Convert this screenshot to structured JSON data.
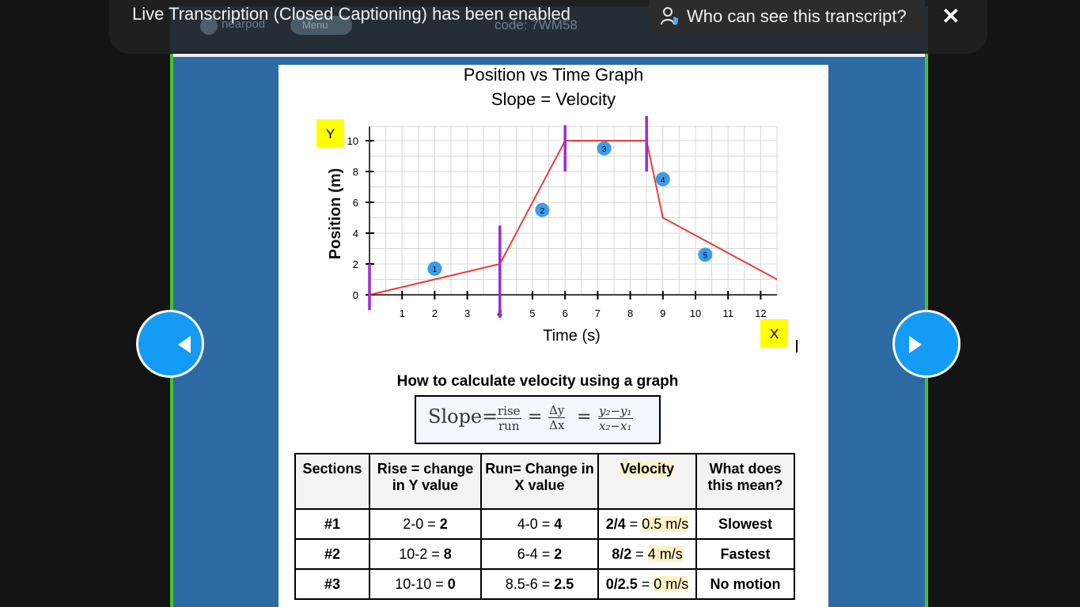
{
  "caption_bar": {
    "status_text": "Live Transcription (Closed Captioning) has been enabled",
    "who_button_label": "Who can see this transcript?",
    "close_label": "✕"
  },
  "background_app": {
    "logo_text": "nearpod",
    "menu_label": "Menu",
    "code_text": "code: 7WM58"
  },
  "slide": {
    "title_line1": "Position vs Time Graph",
    "title_line2": "Slope = Velocity",
    "formula_heading": "How to calculate velocity using a graph",
    "formula": {
      "slope": "Slope=",
      "rise": "rise",
      "run": "run",
      "dy": "Δy",
      "dx": "Δx",
      "y_diff": "y₂−y₁",
      "x_diff": "x₂−x₁",
      "equals": "="
    },
    "table": {
      "headers": [
        "Sections",
        "Rise = change in Y value",
        "Run= Change in X value",
        "Velocity",
        "What does this mean?"
      ],
      "rows": [
        {
          "section": "#1",
          "rise": "2-0 = ",
          "rise_val": "2",
          "run": "4-0 = ",
          "run_val": "4",
          "vel_frac": "2/4",
          "vel_eq": " = ",
          "vel": "0.5 m/s",
          "meaning": "Slowest"
        },
        {
          "section": "#2",
          "rise": "10-2 = ",
          "rise_val": "8",
          "run": "6-4 = ",
          "run_val": "2",
          "vel_frac": "8/2",
          "vel_eq": " = ",
          "vel": "4 m/s",
          "meaning": "Fastest"
        },
        {
          "section": "#3",
          "rise": "10-10 = ",
          "rise_val": "0",
          "run": "8.5-6 = ",
          "run_val": "2.5",
          "vel_frac": "0/2.5",
          "vel_eq": " = ",
          "vel": "0 m/s",
          "meaning": "No motion"
        }
      ]
    }
  },
  "chart_data": {
    "type": "line",
    "xlabel": "Time (s)",
    "ylabel": "Position (m)",
    "x_tag": "X",
    "y_tag": "Y",
    "xlim": [
      0,
      12.5
    ],
    "ylim": [
      0,
      10
    ],
    "x_ticks": [
      1,
      2,
      3,
      4,
      5,
      6,
      7,
      8,
      9,
      10,
      11,
      12
    ],
    "y_ticks": [
      0,
      2,
      4,
      6,
      8,
      10
    ],
    "grid": true,
    "series": [
      {
        "x": [
          0,
          4,
          6,
          8.5,
          9,
          12.5
        ],
        "y": [
          0,
          2,
          10,
          10,
          5,
          1
        ]
      }
    ],
    "section_markers": [
      {
        "label": "1",
        "x": 2,
        "y": 1.7
      },
      {
        "label": "2",
        "x": 5.3,
        "y": 5.5
      },
      {
        "label": "3",
        "x": 7.2,
        "y": 9.5
      },
      {
        "label": "4",
        "x": 9,
        "y": 7.5
      },
      {
        "label": "5",
        "x": 10.3,
        "y": 2.6
      }
    ],
    "dividers_x": [
      0,
      4,
      6,
      8.5
    ],
    "colors": {
      "line": "#ef3b3b",
      "divider": "#9b2bd6",
      "marker": "#3d9be9",
      "tag": "#ffff00"
    }
  }
}
